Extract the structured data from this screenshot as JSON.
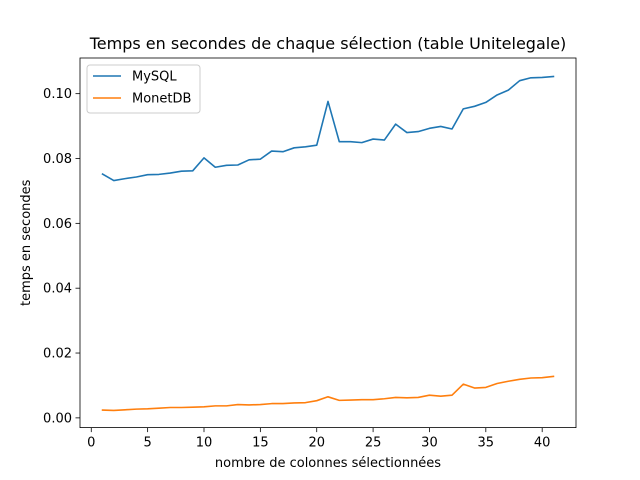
{
  "chart_data": {
    "type": "line",
    "title": "Temps en secondes de chaque sélection (table Unitelegale)",
    "xlabel": "nombre de colonnes sélectionnées",
    "ylabel": "temps en secondes",
    "xlim": [
      -1,
      43
    ],
    "ylim": [
      -0.003,
      0.111
    ],
    "xticks": [
      0,
      5,
      10,
      15,
      20,
      25,
      30,
      35,
      40
    ],
    "xtick_labels": [
      "0",
      "5",
      "10",
      "15",
      "20",
      "25",
      "30",
      "35",
      "40"
    ],
    "yticks": [
      0.0,
      0.02,
      0.04,
      0.06,
      0.08,
      0.1
    ],
    "ytick_labels": [
      "0.00",
      "0.02",
      "0.04",
      "0.06",
      "0.08",
      "0.10"
    ],
    "grid": false,
    "legend_position": "top-left",
    "x": [
      1,
      2,
      3,
      4,
      5,
      6,
      7,
      8,
      9,
      10,
      11,
      12,
      13,
      14,
      15,
      16,
      17,
      18,
      19,
      20,
      21,
      22,
      23,
      24,
      25,
      26,
      27,
      28,
      29,
      30,
      31,
      32,
      33,
      34,
      35,
      36,
      37,
      38,
      39,
      40,
      41
    ],
    "series": [
      {
        "name": "MySQL",
        "color": "#1f77b4",
        "values": [
          0.0752,
          0.0732,
          0.0738,
          0.0743,
          0.075,
          0.0751,
          0.0755,
          0.0761,
          0.0762,
          0.0802,
          0.0773,
          0.0779,
          0.078,
          0.0796,
          0.0798,
          0.0823,
          0.0821,
          0.0833,
          0.0836,
          0.0841,
          0.0976,
          0.0852,
          0.0852,
          0.0849,
          0.086,
          0.0857,
          0.0906,
          0.088,
          0.0883,
          0.0893,
          0.0899,
          0.0891,
          0.0953,
          0.0961,
          0.0973,
          0.0996,
          0.1011,
          0.104,
          0.1049,
          0.105,
          0.1053
        ]
      },
      {
        "name": "MonetDB",
        "color": "#ff7f0e",
        "values": [
          0.0024,
          0.0023,
          0.0025,
          0.0027,
          0.0028,
          0.003,
          0.0032,
          0.0032,
          0.0033,
          0.0034,
          0.0037,
          0.0037,
          0.0041,
          0.004,
          0.0041,
          0.0044,
          0.0044,
          0.0046,
          0.0047,
          0.0053,
          0.0065,
          0.0054,
          0.0055,
          0.0056,
          0.0056,
          0.0059,
          0.0063,
          0.0062,
          0.0063,
          0.007,
          0.0067,
          0.007,
          0.0104,
          0.0092,
          0.0094,
          0.0106,
          0.0113,
          0.0119,
          0.0123,
          0.0124,
          0.0128
        ]
      }
    ]
  }
}
